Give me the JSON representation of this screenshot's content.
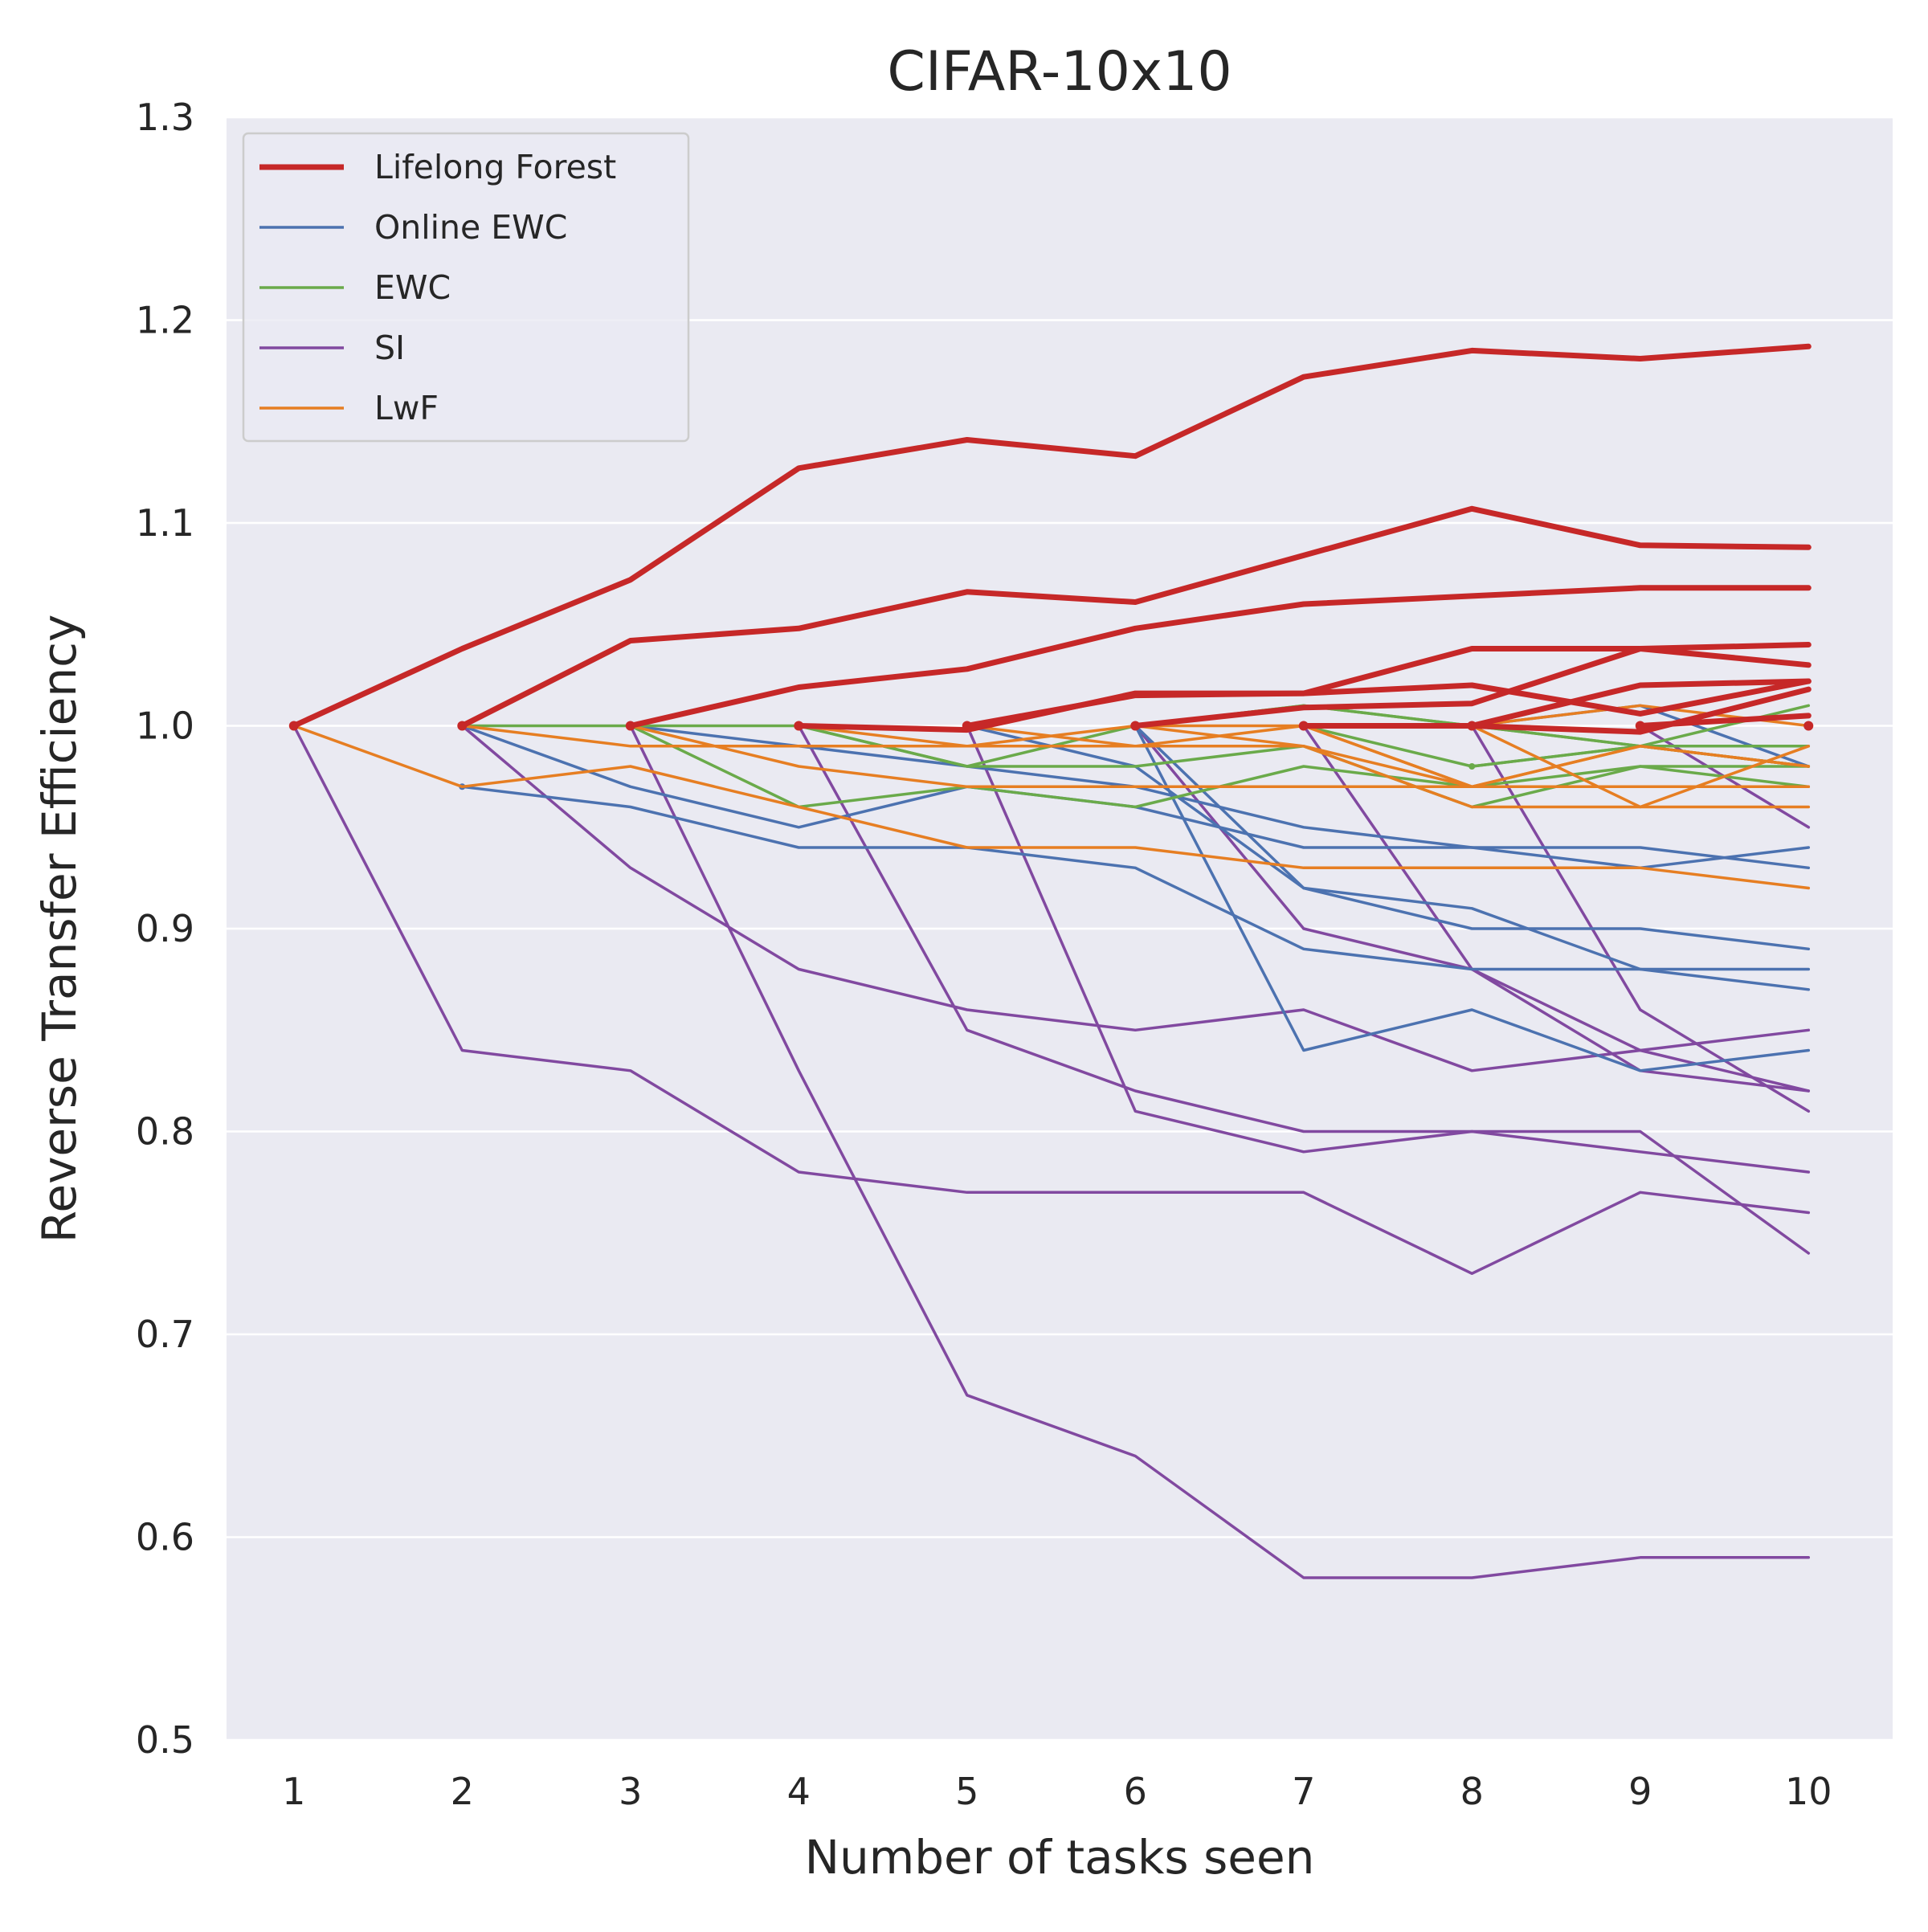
{
  "chart_data": {
    "type": "line",
    "title": "CIFAR-10x10",
    "xlabel": "Number of tasks seen",
    "ylabel": "Reverse Transfer Efficiency",
    "xlim": [
      0.6,
      10.5
    ],
    "ylim": [
      0.5,
      1.3
    ],
    "x_ticks": [
      "1",
      "2",
      "3",
      "4",
      "5",
      "6",
      "7",
      "8",
      "9",
      "10"
    ],
    "y_ticks": [
      "0.5",
      "0.6",
      "0.7",
      "0.8",
      "0.9",
      "1.0",
      "1.1",
      "1.2",
      "1.3"
    ],
    "grid": true,
    "legend_position": "top-left",
    "legend": [
      {
        "name": "Lifelong Forest",
        "color": "#c62828"
      },
      {
        "name": "Online EWC",
        "color": "#4c72b0"
      },
      {
        "name": "EWC",
        "color": "#6aaa4a"
      },
      {
        "name": "SI",
        "color": "#8149a0"
      },
      {
        "name": "LwF",
        "color": "#e67e22"
      }
    ],
    "series": [
      {
        "method": "SI",
        "color": "#8149a0",
        "x": [
          1,
          2,
          3,
          4,
          5,
          6,
          7,
          8,
          9,
          10
        ],
        "y": [
          1.0,
          0.84,
          0.83,
          0.78,
          0.77,
          0.77,
          0.77,
          0.73,
          0.77,
          0.76
        ]
      },
      {
        "method": "SI",
        "color": "#8149a0",
        "x": [
          2,
          3,
          4,
          5,
          6,
          7,
          8,
          9,
          10
        ],
        "y": [
          1.0,
          0.93,
          0.88,
          0.86,
          0.85,
          0.86,
          0.83,
          0.84,
          0.85
        ]
      },
      {
        "method": "SI",
        "color": "#8149a0",
        "x": [
          3,
          4,
          5,
          6,
          7,
          8,
          9,
          10
        ],
        "y": [
          1.0,
          0.83,
          0.67,
          0.64,
          0.58,
          0.58,
          0.59,
          0.59
        ]
      },
      {
        "method": "SI",
        "color": "#8149a0",
        "x": [
          4,
          5,
          6,
          7,
          8,
          9,
          10
        ],
        "y": [
          1.0,
          0.85,
          0.82,
          0.8,
          0.8,
          0.8,
          0.74
        ]
      },
      {
        "method": "SI",
        "color": "#8149a0",
        "x": [
          5,
          6,
          7,
          8,
          9,
          10
        ],
        "y": [
          1.0,
          0.81,
          0.79,
          0.8,
          0.79,
          0.78
        ]
      },
      {
        "method": "SI",
        "color": "#8149a0",
        "x": [
          6,
          7,
          8,
          9,
          10
        ],
        "y": [
          1.0,
          0.9,
          0.88,
          0.84,
          0.82
        ]
      },
      {
        "method": "SI",
        "color": "#8149a0",
        "x": [
          7,
          8,
          9,
          10
        ],
        "y": [
          1.0,
          0.88,
          0.83,
          0.82
        ]
      },
      {
        "method": "SI",
        "color": "#8149a0",
        "x": [
          8,
          9,
          10
        ],
        "y": [
          1.0,
          0.86,
          0.81
        ]
      },
      {
        "method": "SI",
        "color": "#8149a0",
        "x": [
          9,
          10
        ],
        "y": [
          1.0,
          0.95
        ]
      },
      {
        "method": "Online EWC",
        "color": "#4c72b0",
        "x": [
          2,
          3,
          4,
          5,
          6,
          7,
          8,
          9,
          10
        ],
        "y": [
          0.97,
          0.96,
          0.94,
          0.94,
          0.93,
          0.89,
          0.88,
          0.88,
          0.88
        ]
      },
      {
        "method": "Online EWC",
        "color": "#4c72b0",
        "x": [
          2,
          3,
          4,
          5,
          6,
          7,
          8,
          9,
          10
        ],
        "y": [
          1.0,
          0.97,
          0.95,
          0.97,
          0.96,
          0.94,
          0.94,
          0.94,
          0.93
        ]
      },
      {
        "method": "Online EWC",
        "color": "#4c72b0",
        "x": [
          3,
          4,
          5,
          6,
          7,
          8,
          9,
          10
        ],
        "y": [
          1.0,
          0.99,
          0.98,
          0.97,
          0.95,
          0.94,
          0.93,
          0.94
        ]
      },
      {
        "method": "Online EWC",
        "color": "#4c72b0",
        "x": [
          5,
          6,
          7,
          8,
          9,
          10
        ],
        "y": [
          1.0,
          0.98,
          0.92,
          0.91,
          0.88,
          0.87
        ]
      },
      {
        "method": "Online EWC",
        "color": "#4c72b0",
        "x": [
          6,
          7,
          8,
          9,
          10
        ],
        "y": [
          1.0,
          0.92,
          0.9,
          0.9,
          0.89
        ]
      },
      {
        "method": "Online EWC",
        "color": "#4c72b0",
        "x": [
          6,
          7,
          8,
          9,
          10
        ],
        "y": [
          1.0,
          0.84,
          0.86,
          0.83,
          0.84
        ]
      },
      {
        "method": "Online EWC",
        "color": "#4c72b0",
        "x": [
          8,
          9,
          10
        ],
        "y": [
          1.0,
          1.01,
          0.98
        ]
      },
      {
        "method": "EWC",
        "color": "#6aaa4a",
        "x": [
          2,
          3,
          4,
          5,
          6,
          7,
          8,
          9,
          10
        ],
        "y": [
          1.0,
          1.0,
          0.96,
          0.97,
          0.96,
          0.98,
          0.97,
          0.98,
          0.98
        ]
      },
      {
        "method": "EWC",
        "color": "#6aaa4a",
        "x": [
          3,
          4,
          5,
          6,
          7,
          8,
          9,
          10
        ],
        "y": [
          1.0,
          1.0,
          0.98,
          1.0,
          1.01,
          1.0,
          0.99,
          0.98
        ]
      },
      {
        "method": "EWC",
        "color": "#6aaa4a",
        "x": [
          4,
          5,
          6,
          7,
          8,
          9,
          10
        ],
        "y": [
          1.0,
          0.98,
          0.98,
          0.99,
          0.96,
          0.98,
          0.97
        ]
      },
      {
        "method": "EWC",
        "color": "#6aaa4a",
        "x": [
          6,
          7,
          8,
          9,
          10
        ],
        "y": [
          1.0,
          1.01,
          1.0,
          0.99,
          1.01
        ]
      },
      {
        "method": "EWC",
        "color": "#6aaa4a",
        "x": [
          7,
          8,
          9,
          10
        ],
        "y": [
          1.0,
          0.98,
          0.99,
          0.99
        ]
      },
      {
        "method": "EWC",
        "color": "#6aaa4a",
        "x": [
          8,
          9,
          10
        ],
        "y": [
          0.98,
          0.99,
          0.98
        ]
      },
      {
        "method": "LwF",
        "color": "#e67e22",
        "x": [
          1,
          2,
          3,
          4,
          5,
          6,
          7,
          8,
          9,
          10
        ],
        "y": [
          1.0,
          0.97,
          0.98,
          0.96,
          0.94,
          0.94,
          0.93,
          0.93,
          0.93,
          0.92
        ]
      },
      {
        "method": "LwF",
        "color": "#e67e22",
        "x": [
          2,
          3,
          4,
          5,
          6,
          7,
          8,
          9,
          10
        ],
        "y": [
          1.0,
          0.99,
          0.99,
          0.99,
          0.99,
          0.99,
          0.97,
          0.97,
          0.97
        ]
      },
      {
        "method": "LwF",
        "color": "#e67e22",
        "x": [
          3,
          4,
          5,
          6,
          7,
          8,
          9,
          10
        ],
        "y": [
          1.0,
          0.98,
          0.97,
          0.97,
          0.97,
          0.97,
          0.97,
          0.97
        ]
      },
      {
        "method": "LwF",
        "color": "#e67e22",
        "x": [
          4,
          5,
          6,
          7,
          8,
          9,
          10
        ],
        "y": [
          1.0,
          0.99,
          1.0,
          0.99,
          0.96,
          0.96,
          0.96
        ]
      },
      {
        "method": "LwF",
        "color": "#e67e22",
        "x": [
          5,
          6,
          7,
          8,
          9,
          10
        ],
        "y": [
          1.0,
          0.99,
          1.0,
          0.97,
          0.99,
          0.98
        ]
      },
      {
        "method": "LwF",
        "color": "#e67e22",
        "x": [
          6,
          7,
          8,
          9,
          10
        ],
        "y": [
          1.0,
          1.0,
          1.0,
          1.01,
          1.0
        ]
      },
      {
        "method": "LwF",
        "color": "#e67e22",
        "x": [
          7,
          8,
          9,
          10
        ],
        "y": [
          1.0,
          0.97,
          0.99,
          0.98
        ]
      },
      {
        "method": "LwF",
        "color": "#e67e22",
        "x": [
          8,
          9,
          10
        ],
        "y": [
          1.0,
          0.96,
          0.99
        ]
      },
      {
        "method": "Lifelong Forest",
        "color": "#c62828",
        "x": [
          1,
          2,
          3,
          4,
          5,
          6,
          7,
          8,
          9,
          10
        ],
        "y": [
          1.0,
          1.038,
          1.072,
          1.127,
          1.141,
          1.133,
          1.172,
          1.185,
          1.181,
          1.187
        ]
      },
      {
        "method": "Lifelong Forest",
        "color": "#c62828",
        "x": [
          2,
          3,
          4,
          5,
          6,
          7,
          8,
          9,
          10
        ],
        "y": [
          1.0,
          1.042,
          1.048,
          1.066,
          1.061,
          1.084,
          1.107,
          1.089,
          1.088
        ]
      },
      {
        "method": "Lifelong Forest",
        "color": "#c62828",
        "x": [
          3,
          4,
          5,
          6,
          7,
          8,
          9,
          10
        ],
        "y": [
          1.0,
          1.019,
          1.028,
          1.048,
          1.06,
          1.064,
          1.068,
          1.068
        ]
      },
      {
        "method": "Lifelong Forest",
        "color": "#c62828",
        "x": [
          4,
          5,
          6,
          7,
          8,
          9,
          10
        ],
        "y": [
          1.0,
          0.998,
          1.016,
          1.016,
          1.038,
          1.038,
          1.04
        ]
      },
      {
        "method": "Lifelong Forest",
        "color": "#c62828",
        "x": [
          5,
          6,
          7,
          8,
          9,
          10
        ],
        "y": [
          1.0,
          1.015,
          1.016,
          1.02,
          1.006,
          1.022
        ]
      },
      {
        "method": "Lifelong Forest",
        "color": "#c62828",
        "x": [
          6,
          7,
          8,
          9,
          10
        ],
        "y": [
          1.0,
          1.009,
          1.011,
          1.038,
          1.03
        ]
      },
      {
        "method": "Lifelong Forest",
        "color": "#c62828",
        "x": [
          7,
          8,
          9,
          10
        ],
        "y": [
          1.0,
          1.0,
          1.02,
          1.022
        ]
      },
      {
        "method": "Lifelong Forest",
        "color": "#c62828",
        "x": [
          8,
          9,
          10
        ],
        "y": [
          1.0,
          0.997,
          1.018
        ]
      },
      {
        "method": "Lifelong Forest",
        "color": "#c62828",
        "x": [
          9,
          10
        ],
        "y": [
          1.0,
          1.005
        ]
      },
      {
        "method": "Lifelong Forest",
        "color": "#c62828",
        "x": [
          10
        ],
        "y": [
          1.0
        ]
      }
    ]
  }
}
